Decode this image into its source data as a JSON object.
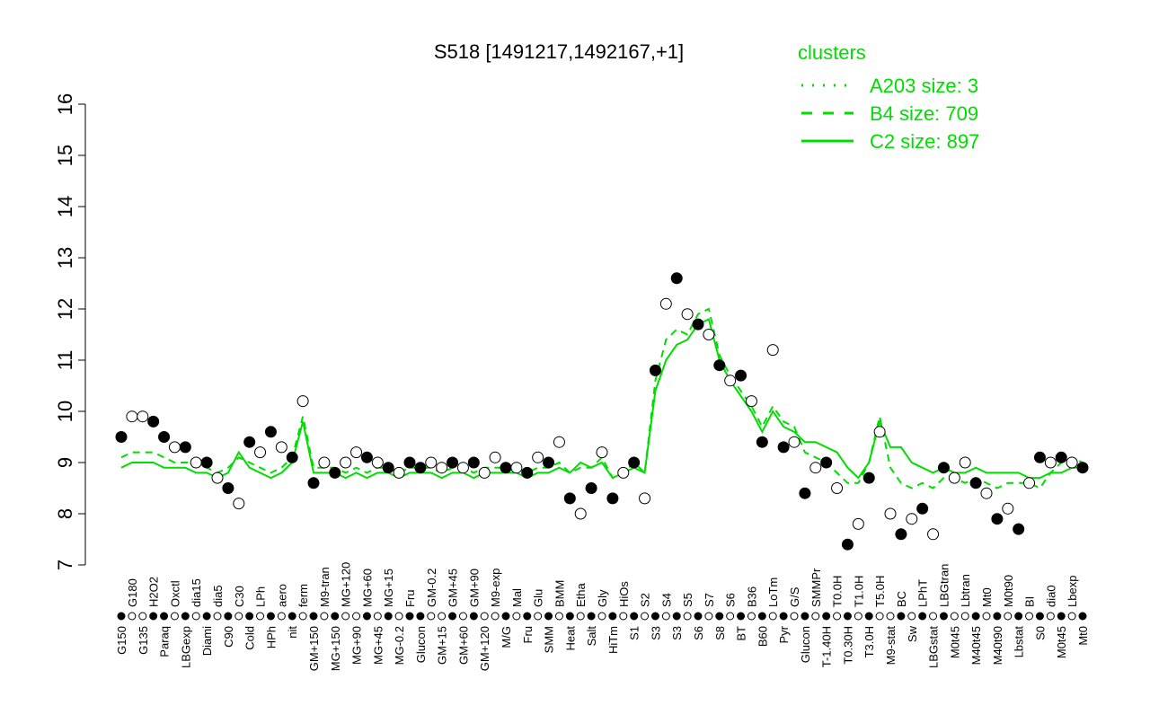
{
  "chart_data": {
    "type": "scatter",
    "title": "S518 [1491217,1492167,+1]",
    "xlabel": "",
    "ylabel": "",
    "ylim": [
      7,
      16
    ],
    "yticks": [
      7,
      8,
      9,
      10,
      11,
      12,
      13,
      14,
      15,
      16
    ],
    "legend": {
      "title": "clusters",
      "placement": "top-right",
      "color": "#00dd00",
      "entries": [
        {
          "label": "A203 size: 3",
          "style": "dotted"
        },
        {
          "label": "B4 size: 709",
          "style": "dashed"
        },
        {
          "label": "C2 size: 897",
          "style": "solid"
        }
      ]
    },
    "points": [
      {
        "label": "G150",
        "y": 9.5,
        "filled": true
      },
      {
        "label": "G180",
        "y": 9.9,
        "filled": false
      },
      {
        "label": "G135",
        "y": 9.9,
        "filled": false
      },
      {
        "label": "H2O2",
        "y": 9.8,
        "filled": true
      },
      {
        "label": "Paraq",
        "y": 9.5,
        "filled": true
      },
      {
        "label": "Oxctl",
        "y": 9.3,
        "filled": false
      },
      {
        "label": "LBGexp",
        "y": 9.3,
        "filled": true
      },
      {
        "label": "dia15",
        "y": 9.0,
        "filled": false
      },
      {
        "label": "Diami",
        "y": 9.0,
        "filled": true
      },
      {
        "label": "dia5",
        "y": 8.7,
        "filled": false
      },
      {
        "label": "C90",
        "y": 8.5,
        "filled": true
      },
      {
        "label": "C30",
        "y": 8.2,
        "filled": false
      },
      {
        "label": "Cold",
        "y": 9.4,
        "filled": true
      },
      {
        "label": "LPh",
        "y": 9.2,
        "filled": false
      },
      {
        "label": "HPh",
        "y": 9.6,
        "filled": true
      },
      {
        "label": "aero",
        "y": 9.3,
        "filled": false
      },
      {
        "label": "nit",
        "y": 9.1,
        "filled": true
      },
      {
        "label": "ferm",
        "y": 10.2,
        "filled": false
      },
      {
        "label": "GM+150",
        "y": 8.6,
        "filled": true
      },
      {
        "label": "M9-tran",
        "y": 9.0,
        "filled": false
      },
      {
        "label": "MG+150",
        "y": 8.8,
        "filled": true
      },
      {
        "label": "MG+120",
        "y": 9.0,
        "filled": false
      },
      {
        "label": "MG+90",
        "y": 9.2,
        "filled": false
      },
      {
        "label": "MG+60",
        "y": 9.1,
        "filled": true
      },
      {
        "label": "MG+45",
        "y": 9.0,
        "filled": false
      },
      {
        "label": "MG+15",
        "y": 8.9,
        "filled": true
      },
      {
        "label": "MG-0.2",
        "y": 8.8,
        "filled": false
      },
      {
        "label": "Fru",
        "y": 9.0,
        "filled": true
      },
      {
        "label": "Glucon",
        "y": 8.9,
        "filled": true
      },
      {
        "label": "GM-0.2",
        "y": 9.0,
        "filled": false
      },
      {
        "label": "GM+15",
        "y": 8.9,
        "filled": false
      },
      {
        "label": "GM+45",
        "y": 9.0,
        "filled": true
      },
      {
        "label": "GM+60",
        "y": 8.9,
        "filled": false
      },
      {
        "label": "GM+90",
        "y": 9.0,
        "filled": true
      },
      {
        "label": "GM+120",
        "y": 8.8,
        "filled": false
      },
      {
        "label": "M9-exp",
        "y": 9.1,
        "filled": false
      },
      {
        "label": "M/G",
        "y": 8.9,
        "filled": true
      },
      {
        "label": "Mal",
        "y": 8.9,
        "filled": false
      },
      {
        "label": "Fru",
        "y": 8.8,
        "filled": true
      },
      {
        "label": "Glu",
        "y": 9.1,
        "filled": false
      },
      {
        "label": "SMM",
        "y": 9.0,
        "filled": true
      },
      {
        "label": "BMM",
        "y": 9.4,
        "filled": false
      },
      {
        "label": "Heat",
        "y": 8.3,
        "filled": true
      },
      {
        "label": "Etha",
        "y": 8.0,
        "filled": false
      },
      {
        "label": "Salt",
        "y": 8.5,
        "filled": true
      },
      {
        "label": "Gly",
        "y": 9.2,
        "filled": false
      },
      {
        "label": "HiTm",
        "y": 8.3,
        "filled": true
      },
      {
        "label": "HiOs",
        "y": 8.8,
        "filled": false
      },
      {
        "label": "S1",
        "y": 9.0,
        "filled": true
      },
      {
        "label": "S2",
        "y": 8.3,
        "filled": false
      },
      {
        "label": "S3",
        "y": 10.8,
        "filled": true
      },
      {
        "label": "S4",
        "y": 12.1,
        "filled": false
      },
      {
        "label": "S3",
        "y": 12.6,
        "filled": true
      },
      {
        "label": "S5",
        "y": 11.9,
        "filled": false
      },
      {
        "label": "S6",
        "y": 11.7,
        "filled": true
      },
      {
        "label": "S7",
        "y": 11.5,
        "filled": false
      },
      {
        "label": "S8",
        "y": 10.9,
        "filled": true
      },
      {
        "label": "S6",
        "y": 10.6,
        "filled": false
      },
      {
        "label": "BT",
        "y": 10.7,
        "filled": true
      },
      {
        "label": "B36",
        "y": 10.2,
        "filled": false
      },
      {
        "label": "B60",
        "y": 9.4,
        "filled": true
      },
      {
        "label": "LoTm",
        "y": 11.2,
        "filled": false
      },
      {
        "label": "Pyr",
        "y": 9.3,
        "filled": true
      },
      {
        "label": "G/S",
        "y": 9.4,
        "filled": false
      },
      {
        "label": "Glucon",
        "y": 8.4,
        "filled": true
      },
      {
        "label": "SMMPr",
        "y": 8.9,
        "filled": false
      },
      {
        "label": "T-1.40H",
        "y": 9.0,
        "filled": true
      },
      {
        "label": "T0.0H",
        "y": 8.5,
        "filled": false
      },
      {
        "label": "T0.30H",
        "y": 7.4,
        "filled": true
      },
      {
        "label": "T1.0H",
        "y": 7.8,
        "filled": false
      },
      {
        "label": "T3.0H",
        "y": 8.7,
        "filled": true
      },
      {
        "label": "T5.0H",
        "y": 9.6,
        "filled": false
      },
      {
        "label": "M9-stat",
        "y": 8.0,
        "filled": false
      },
      {
        "label": "BC",
        "y": 7.6,
        "filled": true
      },
      {
        "label": "Sw",
        "y": 7.9,
        "filled": false
      },
      {
        "label": "LPhT",
        "y": 8.1,
        "filled": true
      },
      {
        "label": "LBGstat",
        "y": 7.6,
        "filled": false
      },
      {
        "label": "LBGtran",
        "y": 8.9,
        "filled": true
      },
      {
        "label": "M0t45",
        "y": 8.7,
        "filled": false
      },
      {
        "label": "Lbtran",
        "y": 9.0,
        "filled": false
      },
      {
        "label": "M40t45",
        "y": 8.6,
        "filled": true
      },
      {
        "label": "Mt0",
        "y": 8.4,
        "filled": false
      },
      {
        "label": "M40t90",
        "y": 7.9,
        "filled": true
      },
      {
        "label": "M0t90",
        "y": 8.1,
        "filled": false
      },
      {
        "label": "Lbstat",
        "y": 7.7,
        "filled": true
      },
      {
        "label": "BI",
        "y": 8.6,
        "filled": false
      },
      {
        "label": "S0",
        "y": 9.1,
        "filled": true
      },
      {
        "label": "dia0",
        "y": 9.0,
        "filled": false
      },
      {
        "label": "M0t45",
        "y": 9.1,
        "filled": true
      },
      {
        "label": "Lbexp",
        "y": 9.0,
        "filled": false
      },
      {
        "label": "Mt0",
        "y": 8.9,
        "filled": true
      }
    ],
    "series": [
      {
        "name": "C2 size: 897",
        "style": "solid",
        "values": [
          8.9,
          9.0,
          9.0,
          9.0,
          8.9,
          8.9,
          8.9,
          8.8,
          8.8,
          8.7,
          8.8,
          9.2,
          8.9,
          8.8,
          8.7,
          8.8,
          9.0,
          9.8,
          8.8,
          8.8,
          8.8,
          8.7,
          8.8,
          8.7,
          8.8,
          8.8,
          8.7,
          8.8,
          8.8,
          8.8,
          8.7,
          8.8,
          8.8,
          8.7,
          8.8,
          8.8,
          8.8,
          8.8,
          8.7,
          8.8,
          8.8,
          8.9,
          8.8,
          9.0,
          8.9,
          9.0,
          8.7,
          8.8,
          8.9,
          8.8,
          10.4,
          11.0,
          11.3,
          11.4,
          11.7,
          11.8,
          11.0,
          10.6,
          10.3,
          10.0,
          9.6,
          10.0,
          9.7,
          9.6,
          9.4,
          9.4,
          9.3,
          9.2,
          8.9,
          8.7,
          9.0,
          9.8,
          9.3,
          9.3,
          9.0,
          8.9,
          8.8,
          8.9,
          8.8,
          8.8,
          8.9,
          8.8,
          8.8,
          8.8,
          8.8,
          8.7,
          8.7,
          8.8,
          8.8,
          8.9,
          8.9
        ]
      },
      {
        "name": "B4 size: 709",
        "style": "dashed",
        "values": [
          9.1,
          9.2,
          9.2,
          9.2,
          9.1,
          9.0,
          9.0,
          9.0,
          8.9,
          8.8,
          8.9,
          9.1,
          9.0,
          8.9,
          8.8,
          8.9,
          9.1,
          9.9,
          8.9,
          8.9,
          8.9,
          8.8,
          8.9,
          8.8,
          8.9,
          8.9,
          8.8,
          8.9,
          8.9,
          8.9,
          8.8,
          8.9,
          8.9,
          8.8,
          8.9,
          8.9,
          8.9,
          8.9,
          8.8,
          8.9,
          8.9,
          9.0,
          8.8,
          8.9,
          8.9,
          9.1,
          8.7,
          8.8,
          9.0,
          8.8,
          10.6,
          11.4,
          11.6,
          11.5,
          11.9,
          12.0,
          11.1,
          10.7,
          10.4,
          10.1,
          9.7,
          10.1,
          9.8,
          9.7,
          9.2,
          9.1,
          9.0,
          8.8,
          8.6,
          8.6,
          9.0,
          9.9,
          8.9,
          8.6,
          8.5,
          8.6,
          8.5,
          8.7,
          8.7,
          8.6,
          8.7,
          8.6,
          8.5,
          8.6,
          8.6,
          8.6,
          8.5,
          8.8,
          9.0,
          9.1,
          9.0
        ]
      }
    ]
  }
}
